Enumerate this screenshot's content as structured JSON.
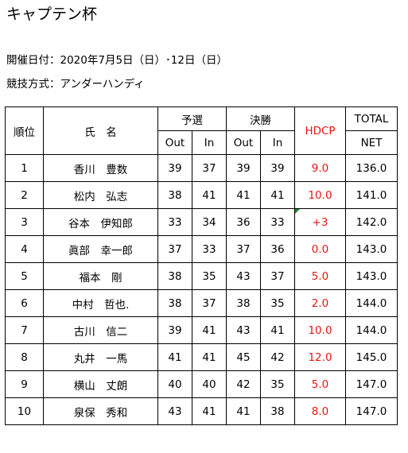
{
  "title": "キャプテン杯",
  "date_line": "開催日付：2020年7月5日（日）･12日（日）",
  "format_line": "競技方式：アンダーハンディ",
  "headers": {
    "rank": "順位",
    "name": "氏　名",
    "qualifying": "予選",
    "final": "決勝",
    "hdcp": "HDCP",
    "total": "TOTAL",
    "out": "Out",
    "in": "In",
    "net": "NET"
  },
  "rows": [
    {
      "rank": "1",
      "name": "香川　豊数",
      "q_out": "39",
      "q_in": "37",
      "f_out": "39",
      "f_in": "39",
      "hdcp": "9.0",
      "net": "136.0"
    },
    {
      "rank": "2",
      "name": "松内　弘志",
      "q_out": "38",
      "q_in": "41",
      "f_out": "41",
      "f_in": "41",
      "hdcp": "10.0",
      "net": "141.0"
    },
    {
      "rank": "3",
      "name": "谷本　伊知郎",
      "q_out": "33",
      "q_in": "34",
      "f_out": "36",
      "f_in": "33",
      "hdcp": "+3",
      "net": "142.0"
    },
    {
      "rank": "4",
      "name": "眞部　幸一郎",
      "q_out": "37",
      "q_in": "33",
      "f_out": "37",
      "f_in": "36",
      "hdcp": "0.0",
      "net": "143.0"
    },
    {
      "rank": "5",
      "name": "福本　剛",
      "q_out": "38",
      "q_in": "35",
      "f_out": "43",
      "f_in": "37",
      "hdcp": "5.0",
      "net": "143.0"
    },
    {
      "rank": "6",
      "name": "中村　哲也.",
      "q_out": "38",
      "q_in": "37",
      "f_out": "38",
      "f_in": "35",
      "hdcp": "2.0",
      "net": "144.0"
    },
    {
      "rank": "7",
      "name": "古川　信二",
      "q_out": "39",
      "q_in": "41",
      "f_out": "43",
      "f_in": "41",
      "hdcp": "10.0",
      "net": "144.0"
    },
    {
      "rank": "8",
      "name": "丸井　一馬",
      "q_out": "41",
      "q_in": "41",
      "f_out": "45",
      "f_in": "42",
      "hdcp": "12.0",
      "net": "145.0"
    },
    {
      "rank": "9",
      "name": "横山　丈朗",
      "q_out": "40",
      "q_in": "40",
      "f_out": "42",
      "f_in": "35",
      "hdcp": "5.0",
      "net": "147.0"
    },
    {
      "rank": "10",
      "name": "泉保　秀和",
      "q_out": "43",
      "q_in": "41",
      "f_out": "41",
      "f_in": "38",
      "hdcp": "8.0",
      "net": "147.0"
    }
  ],
  "colors": {
    "hdcp": "#e8140f",
    "comment_marker": "#1a8a2c"
  }
}
